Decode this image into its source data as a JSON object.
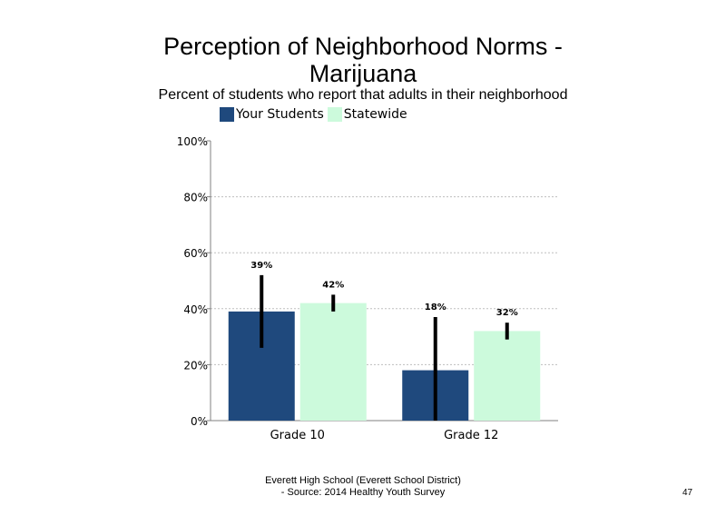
{
  "slide": {
    "title_line1": "Perception of Neighborhood Norms -",
    "title_line2": "Marijuana",
    "subtitle": "Percent of students who report that adults in their neighborhood",
    "footer_line1": "Everett High School (Everett School District)",
    "footer_line2": "- Source: 2014 Healthy Youth Survey",
    "page_number": "47"
  },
  "colors": {
    "your_students": "#1f497d",
    "statewide": "#ccfadc",
    "error_bar": "#000000",
    "axis": "#808080",
    "grid": "#bfbfbf"
  },
  "chart_data": {
    "type": "bar",
    "title": "Perception of Neighborhood Norms - Marijuana",
    "subtitle": "Percent of students who report that adults in their neighborhood",
    "categories": [
      "Grade 10",
      "Grade 12"
    ],
    "series": [
      {
        "name": "Your Students",
        "values": [
          39,
          18
        ],
        "labels": [
          "39%",
          "18%"
        ],
        "error_low": [
          26,
          0
        ],
        "error_high": [
          52,
          37
        ]
      },
      {
        "name": "Statewide",
        "values": [
          42,
          32
        ],
        "labels": [
          "42%",
          "32%"
        ],
        "error_low": [
          39,
          29
        ],
        "error_high": [
          45,
          35
        ]
      }
    ],
    "ylim": [
      0,
      100
    ],
    "yticks": [
      0,
      20,
      40,
      60,
      80,
      100
    ],
    "ytick_labels": [
      "0%",
      "20%",
      "40%",
      "60%",
      "80%",
      "100%"
    ],
    "grid": true,
    "legend_position": "top"
  }
}
